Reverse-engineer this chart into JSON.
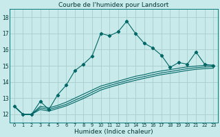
{
  "title": "Courbe de l'humidex pour Landsort",
  "xlabel": "Humidex (Indice chaleur)",
  "background_color": "#c8eaea",
  "grid_color": "#a8cccc",
  "line_color": "#006666",
  "x_values": [
    0,
    1,
    2,
    3,
    4,
    5,
    6,
    7,
    8,
    9,
    10,
    11,
    12,
    13,
    14,
    15,
    16,
    17,
    18,
    19,
    20,
    21,
    22,
    23
  ],
  "main_line": [
    12.5,
    12.0,
    12.0,
    12.8,
    12.3,
    13.2,
    13.8,
    14.7,
    15.1,
    15.6,
    17.0,
    16.85,
    17.1,
    17.75,
    17.0,
    16.4,
    16.1,
    15.65,
    14.9,
    15.2,
    15.1,
    15.85,
    15.1,
    15.0
  ],
  "line2": [
    12.5,
    12.0,
    12.0,
    12.5,
    12.4,
    12.55,
    12.75,
    13.0,
    13.25,
    13.5,
    13.75,
    13.9,
    14.05,
    14.2,
    14.35,
    14.45,
    14.58,
    14.68,
    14.76,
    14.85,
    14.93,
    14.98,
    15.02,
    15.05
  ],
  "line3": [
    12.5,
    12.0,
    12.0,
    12.4,
    12.3,
    12.45,
    12.62,
    12.87,
    13.1,
    13.37,
    13.62,
    13.78,
    13.93,
    14.08,
    14.22,
    14.33,
    14.45,
    14.56,
    14.64,
    14.73,
    14.82,
    14.88,
    14.92,
    14.95
  ],
  "line4": [
    12.5,
    12.0,
    12.0,
    12.3,
    12.2,
    12.36,
    12.52,
    12.75,
    12.98,
    13.24,
    13.5,
    13.67,
    13.82,
    13.97,
    14.1,
    14.22,
    14.34,
    14.45,
    14.53,
    14.62,
    14.71,
    14.78,
    14.82,
    14.85
  ],
  "ylim": [
    11.5,
    18.5
  ],
  "yticks": [
    12,
    13,
    14,
    15,
    16,
    17,
    18
  ],
  "xlim": [
    -0.5,
    23.5
  ]
}
